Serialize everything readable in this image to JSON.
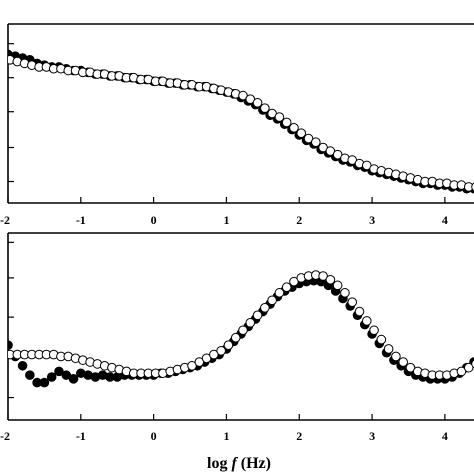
{
  "chart_data": [
    {
      "type": "scatter",
      "panel": "top",
      "xlim": [
        -2,
        4.4
      ],
      "ylim": [
        0,
        1
      ],
      "x_ticks": [
        "-2",
        "-1",
        "0",
        "1",
        "2",
        "3",
        "4"
      ],
      "x_tick_values": [
        -2,
        -1,
        0,
        1,
        2,
        3,
        4
      ],
      "y_tick_values": [
        0.12,
        0.31,
        0.51,
        0.7,
        0.89
      ],
      "series": [
        {
          "marker": "filled-circle",
          "x": [
            -2.0,
            -1.9,
            -1.8,
            -1.7,
            -1.6,
            -1.5,
            -1.4,
            -1.3,
            -1.2,
            -1.1,
            -1.0,
            -0.9,
            -0.8,
            -0.7,
            -0.6,
            -0.5,
            -0.4,
            -0.3,
            -0.2,
            -0.1,
            0.0,
            0.1,
            0.2,
            0.3,
            0.4,
            0.5,
            0.6,
            0.7,
            0.8,
            0.9,
            1.0,
            1.1,
            1.2,
            1.3,
            1.4,
            1.5,
            1.6,
            1.7,
            1.8,
            1.9,
            2.0,
            2.1,
            2.2,
            2.3,
            2.4,
            2.5,
            2.6,
            2.7,
            2.8,
            2.9,
            3.0,
            3.1,
            3.2,
            3.3,
            3.4,
            3.5,
            3.6,
            3.7,
            3.8,
            3.9,
            4.0,
            4.1,
            4.2,
            4.3,
            4.4
          ],
          "y": [
            0.83,
            0.82,
            0.81,
            0.8,
            0.78,
            0.77,
            0.76,
            0.76,
            0.75,
            0.74,
            0.74,
            0.73,
            0.72,
            0.72,
            0.71,
            0.71,
            0.7,
            0.7,
            0.69,
            0.69,
            0.68,
            0.68,
            0.67,
            0.67,
            0.66,
            0.66,
            0.65,
            0.65,
            0.64,
            0.63,
            0.62,
            0.61,
            0.59,
            0.57,
            0.55,
            0.52,
            0.49,
            0.47,
            0.44,
            0.41,
            0.38,
            0.35,
            0.33,
            0.3,
            0.28,
            0.26,
            0.24,
            0.23,
            0.21,
            0.2,
            0.18,
            0.17,
            0.16,
            0.15,
            0.14,
            0.13,
            0.12,
            0.11,
            0.11,
            0.1,
            0.1,
            0.09,
            0.09,
            0.08,
            0.08
          ]
        },
        {
          "marker": "open-circle",
          "x": [
            -2.0,
            -1.9,
            -1.8,
            -1.7,
            -1.6,
            -1.5,
            -1.4,
            -1.3,
            -1.2,
            -1.1,
            -1.0,
            -0.9,
            -0.8,
            -0.7,
            -0.6,
            -0.5,
            -0.4,
            -0.3,
            -0.2,
            -0.1,
            0.0,
            0.1,
            0.2,
            0.3,
            0.4,
            0.5,
            0.6,
            0.7,
            0.8,
            0.9,
            1.0,
            1.1,
            1.2,
            1.3,
            1.4,
            1.5,
            1.6,
            1.7,
            1.8,
            1.9,
            2.0,
            2.1,
            2.2,
            2.3,
            2.4,
            2.5,
            2.6,
            2.7,
            2.8,
            2.9,
            3.0,
            3.1,
            3.2,
            3.3,
            3.4,
            3.5,
            3.6,
            3.7,
            3.8,
            3.9,
            4.0,
            4.1,
            4.2,
            4.3,
            4.4
          ],
          "y": [
            0.8,
            0.79,
            0.78,
            0.77,
            0.76,
            0.76,
            0.75,
            0.75,
            0.74,
            0.74,
            0.73,
            0.73,
            0.72,
            0.72,
            0.71,
            0.71,
            0.7,
            0.7,
            0.69,
            0.69,
            0.68,
            0.68,
            0.67,
            0.67,
            0.66,
            0.66,
            0.65,
            0.65,
            0.64,
            0.63,
            0.62,
            0.61,
            0.6,
            0.58,
            0.56,
            0.53,
            0.5,
            0.48,
            0.45,
            0.42,
            0.39,
            0.36,
            0.34,
            0.31,
            0.29,
            0.27,
            0.25,
            0.24,
            0.22,
            0.21,
            0.19,
            0.18,
            0.17,
            0.16,
            0.15,
            0.14,
            0.13,
            0.12,
            0.12,
            0.11,
            0.11,
            0.1,
            0.1,
            0.09,
            0.09
          ]
        }
      ]
    },
    {
      "type": "scatter",
      "panel": "bottom",
      "xlim": [
        -2,
        4.4
      ],
      "ylim": [
        0,
        1
      ],
      "xlabel_prefix": "log ",
      "xlabel_var": "f",
      "xlabel_suffix": " (Hz)",
      "x_ticks": [
        "-2",
        "-1",
        "0",
        "1",
        "2",
        "3",
        "4"
      ],
      "x_tick_values": [
        -2,
        -1,
        0,
        1,
        2,
        3,
        4
      ],
      "y_tick_values": [
        0.12,
        0.33,
        0.55,
        0.76,
        0.95
      ],
      "series": [
        {
          "marker": "filled-circle",
          "x": [
            -2.0,
            -1.9,
            -1.8,
            -1.7,
            -1.6,
            -1.5,
            -1.4,
            -1.3,
            -1.2,
            -1.1,
            -1.0,
            -0.9,
            -0.8,
            -0.7,
            -0.6,
            -0.5,
            -0.4,
            -0.3,
            -0.2,
            -0.1,
            0.0,
            0.1,
            0.2,
            0.3,
            0.4,
            0.5,
            0.6,
            0.7,
            0.8,
            0.9,
            1.0,
            1.1,
            1.2,
            1.3,
            1.4,
            1.5,
            1.6,
            1.7,
            1.8,
            1.9,
            2.0,
            2.1,
            2.2,
            2.3,
            2.4,
            2.5,
            2.6,
            2.7,
            2.8,
            2.9,
            3.0,
            3.1,
            3.2,
            3.3,
            3.4,
            3.5,
            3.6,
            3.7,
            3.8,
            3.9,
            4.0,
            4.1,
            4.2,
            4.3,
            4.4
          ],
          "y": [
            0.4,
            0.34,
            0.29,
            0.24,
            0.2,
            0.2,
            0.23,
            0.26,
            0.24,
            0.22,
            0.25,
            0.24,
            0.23,
            0.24,
            0.23,
            0.23,
            0.24,
            0.24,
            0.24,
            0.24,
            0.24,
            0.25,
            0.25,
            0.26,
            0.27,
            0.28,
            0.29,
            0.31,
            0.33,
            0.35,
            0.38,
            0.42,
            0.46,
            0.5,
            0.54,
            0.58,
            0.62,
            0.66,
            0.69,
            0.71,
            0.73,
            0.74,
            0.745,
            0.74,
            0.72,
            0.69,
            0.65,
            0.61,
            0.56,
            0.51,
            0.46,
            0.41,
            0.36,
            0.32,
            0.29,
            0.26,
            0.24,
            0.23,
            0.22,
            0.22,
            0.22,
            0.23,
            0.25,
            0.28,
            0.31
          ]
        },
        {
          "marker": "open-circle",
          "x": [
            -2.0,
            -1.9,
            -1.8,
            -1.7,
            -1.6,
            -1.5,
            -1.4,
            -1.3,
            -1.2,
            -1.1,
            -1.0,
            -0.9,
            -0.8,
            -0.7,
            -0.6,
            -0.5,
            -0.4,
            -0.3,
            -0.2,
            -0.1,
            0.0,
            0.1,
            0.2,
            0.3,
            0.4,
            0.5,
            0.6,
            0.7,
            0.8,
            0.9,
            1.0,
            1.1,
            1.2,
            1.3,
            1.4,
            1.5,
            1.6,
            1.7,
            1.8,
            1.9,
            2.0,
            2.1,
            2.2,
            2.3,
            2.4,
            2.5,
            2.6,
            2.7,
            2.8,
            2.9,
            3.0,
            3.1,
            3.2,
            3.3,
            3.4,
            3.5,
            3.6,
            3.7,
            3.8,
            3.9,
            4.0,
            4.1,
            4.2,
            4.3,
            4.4
          ],
          "y": [
            0.35,
            0.35,
            0.35,
            0.35,
            0.35,
            0.35,
            0.35,
            0.34,
            0.34,
            0.33,
            0.32,
            0.31,
            0.3,
            0.29,
            0.28,
            0.27,
            0.26,
            0.25,
            0.25,
            0.25,
            0.25,
            0.25,
            0.26,
            0.27,
            0.28,
            0.29,
            0.31,
            0.33,
            0.35,
            0.37,
            0.4,
            0.44,
            0.48,
            0.52,
            0.56,
            0.6,
            0.64,
            0.68,
            0.71,
            0.74,
            0.76,
            0.77,
            0.775,
            0.77,
            0.75,
            0.72,
            0.68,
            0.63,
            0.58,
            0.53,
            0.48,
            0.43,
            0.38,
            0.34,
            0.31,
            0.28,
            0.26,
            0.25,
            0.24,
            0.24,
            0.24,
            0.25,
            0.26,
            0.28,
            0.3
          ]
        }
      ]
    }
  ]
}
